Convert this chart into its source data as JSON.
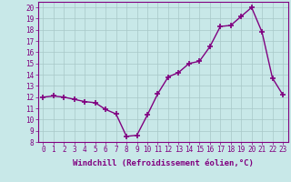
{
  "x": [
    0,
    1,
    2,
    3,
    4,
    5,
    6,
    7,
    8,
    9,
    10,
    11,
    12,
    13,
    14,
    15,
    16,
    17,
    18,
    19,
    20,
    21,
    22,
    23
  ],
  "y": [
    12.0,
    12.1,
    12.0,
    11.8,
    11.6,
    11.5,
    10.9,
    10.5,
    8.5,
    8.6,
    10.4,
    12.3,
    13.8,
    14.2,
    15.0,
    15.2,
    16.5,
    18.3,
    18.4,
    19.2,
    20.0,
    17.8,
    13.7,
    12.2
  ],
  "color": "#800080",
  "bg_color": "#c8e8e8",
  "grid_color": "#a8c8c8",
  "xlabel": "Windchill (Refroidissement éolien,°C)",
  "ylim": [
    8,
    20.5
  ],
  "xlim": [
    -0.5,
    23.5
  ],
  "yticks": [
    8,
    9,
    10,
    11,
    12,
    13,
    14,
    15,
    16,
    17,
    18,
    19,
    20
  ],
  "xticks": [
    0,
    1,
    2,
    3,
    4,
    5,
    6,
    7,
    8,
    9,
    10,
    11,
    12,
    13,
    14,
    15,
    16,
    17,
    18,
    19,
    20,
    21,
    22,
    23
  ],
  "marker": "+",
  "marker_size": 4,
  "line_width": 1.0,
  "xlabel_fontsize": 6.5,
  "tick_fontsize": 5.5
}
